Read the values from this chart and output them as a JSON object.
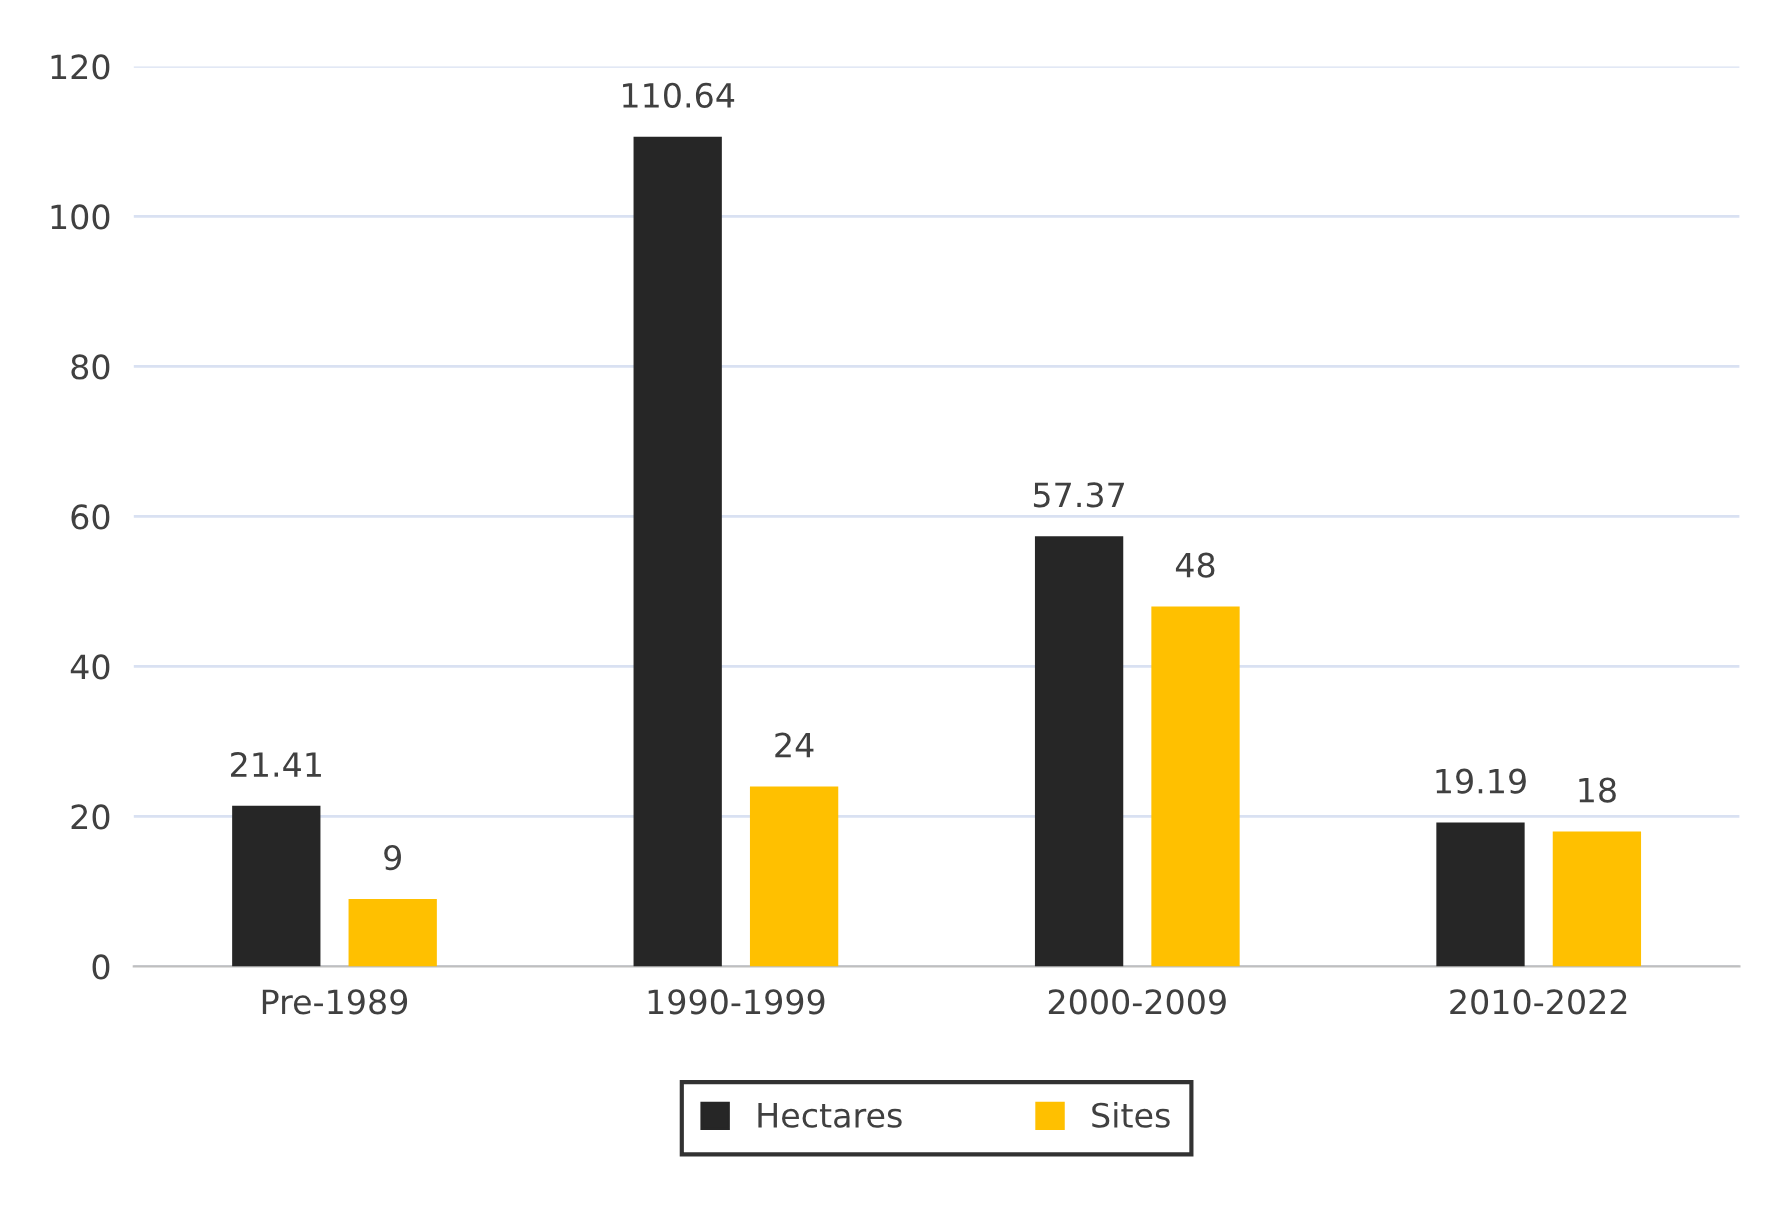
{
  "chart_data": {
    "type": "bar",
    "categories": [
      "Pre-1989",
      "1990-1999",
      "2000-2009",
      "2010-2022"
    ],
    "series": [
      {
        "name": "Hectares",
        "color": "#262626",
        "values": [
          21.41,
          110.64,
          57.37,
          19.19
        ]
      },
      {
        "name": "Sites",
        "color": "#ffc000",
        "values": [
          9,
          24,
          48,
          18
        ]
      }
    ],
    "ylim": [
      0,
      120
    ],
    "yticks": [
      0,
      20,
      40,
      60,
      80,
      100,
      120
    ],
    "grid": "y",
    "legend": "bottom",
    "data_labels": true
  }
}
